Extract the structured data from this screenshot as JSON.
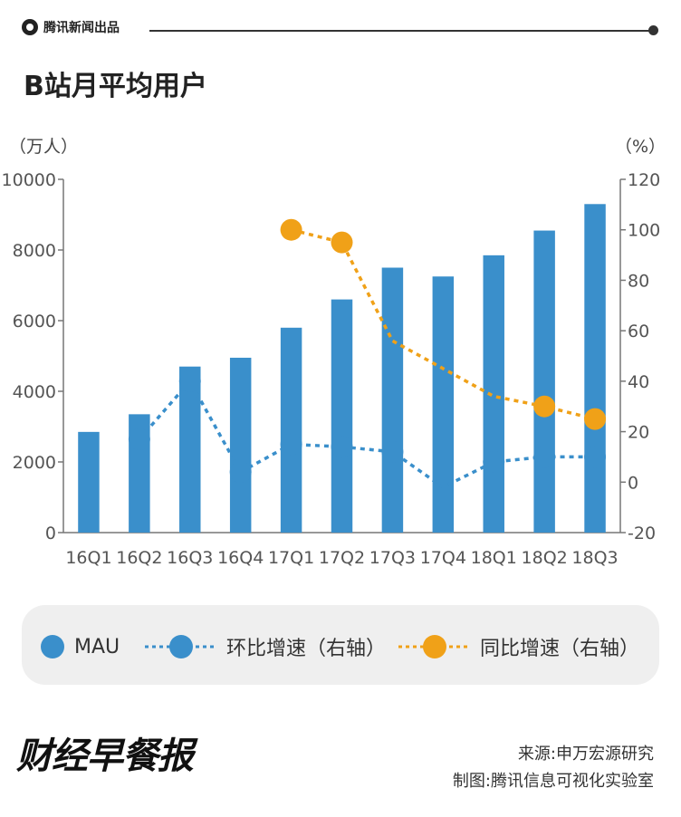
{
  "header": {
    "brand": "腾讯新闻出品",
    "title": "B站月平均用户"
  },
  "colors": {
    "bar": "#3a8fcb",
    "yoy": "#f0a118",
    "qoq": "#3a8fcb",
    "axis": "#777777"
  },
  "chart_data": {
    "type": "bar",
    "categories": [
      "16Q1",
      "16Q2",
      "16Q3",
      "16Q4",
      "17Q1",
      "17Q2",
      "17Q3",
      "17Q4",
      "18Q1",
      "18Q2",
      "18Q3"
    ],
    "y_left_unit": "（万人）",
    "y_right_unit": "（%）",
    "y_left_ticks": [
      0,
      2000,
      4000,
      6000,
      8000,
      10000
    ],
    "y_right_ticks": [
      -20,
      0,
      20,
      40,
      60,
      80,
      100,
      120
    ],
    "ylim_left": [
      0,
      10000
    ],
    "ylim_right": [
      -20,
      120
    ],
    "series": [
      {
        "name": "MAU",
        "type": "bar",
        "axis": "left",
        "values": [
          2850,
          3350,
          4700,
          4950,
          5800,
          6600,
          7500,
          7250,
          7850,
          8550,
          9300
        ]
      },
      {
        "name": "环比增速（右轴）",
        "type": "line",
        "axis": "right",
        "style": "dotted",
        "values": [
          null,
          17,
          40,
          4,
          15,
          14,
          12,
          -2,
          8,
          10,
          10
        ],
        "markers": [
          false,
          true,
          true,
          true,
          true,
          true,
          true,
          false,
          true,
          true,
          true
        ]
      },
      {
        "name": "同比增速（右轴）",
        "type": "line",
        "axis": "right",
        "style": "dotted",
        "values": [
          null,
          null,
          null,
          null,
          100,
          95,
          56,
          45,
          34,
          30,
          25
        ],
        "markers": [
          false,
          false,
          false,
          false,
          true,
          true,
          false,
          false,
          false,
          true,
          true
        ]
      }
    ]
  },
  "footer": {
    "logo": "财经早餐报",
    "source": "来源:申万宏源研究",
    "credit": "制图:腾讯信息可视化实验室"
  }
}
